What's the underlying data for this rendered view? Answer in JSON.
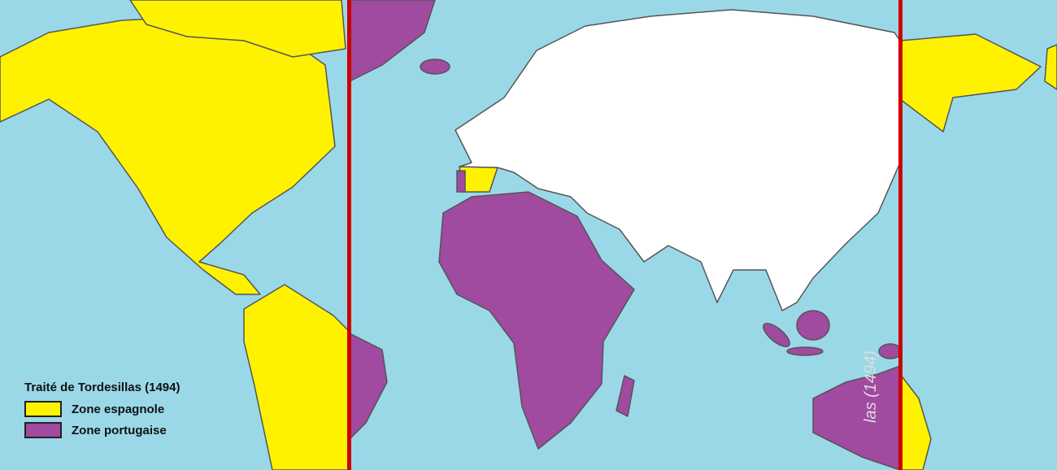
{
  "legend": {
    "title": "Traité de Tordesillas (1494)",
    "items": [
      {
        "label": "Zone espagnole",
        "color": "#fff200"
      },
      {
        "label": "Zone portugaise",
        "color": "#a04aa0"
      }
    ]
  },
  "line_label": "las (1494)",
  "colors": {
    "ocean": "#9ad8e8",
    "unclaimed": "#ffffff",
    "line": "#cc0000"
  }
}
